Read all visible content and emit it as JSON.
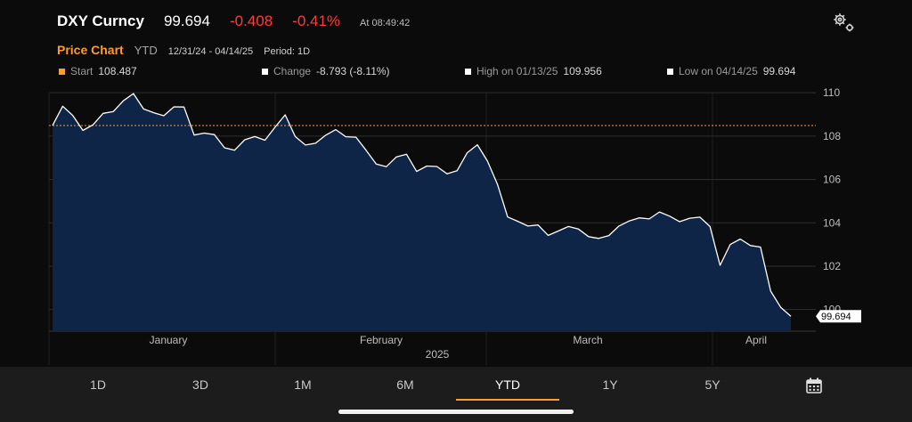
{
  "header": {
    "ticker": "DXY Curncy",
    "last_price": "99.694",
    "net_change": "-0.408",
    "pct_change": "-0.41%",
    "timestamp": "At 08:49:42",
    "settings_icon": "gear-icon"
  },
  "subheader": {
    "title": "Price Chart",
    "period": "YTD",
    "date_range": "12/31/24 - 04/14/25",
    "period_detail": "Period: 1D"
  },
  "stats": {
    "start_label": "Start",
    "start_value": "108.487",
    "change_label": "Change",
    "change_value": "-8.793 (-8.11%)",
    "high_label": "High on 01/13/25",
    "high_value": "109.956",
    "low_label": "Low on 04/14/25",
    "low_value": "99.694",
    "start_color": "#ff9b2f"
  },
  "chart_data": {
    "type": "area",
    "x_ticks": [
      "January",
      "February",
      "March",
      "April"
    ],
    "year_label": "2025",
    "y_ticks": [
      "110",
      "108",
      "106",
      "104",
      "102",
      "100"
    ],
    "ylim": [
      99.0,
      110.5
    ],
    "reference_line": 108.487,
    "last_label": "99.694",
    "line_color": "#ffffff",
    "fill_color": "#0f2547",
    "reference_color": "#ff9b2f",
    "grid": true,
    "values": [
      108.49,
      109.38,
      108.95,
      108.26,
      108.52,
      109.05,
      109.13,
      109.63,
      109.96,
      109.25,
      109.08,
      108.94,
      109.35,
      109.34,
      108.05,
      108.14,
      108.07,
      107.46,
      107.35,
      107.83,
      107.98,
      107.81,
      108.41,
      108.98,
      107.98,
      107.59,
      107.67,
      108.04,
      108.3,
      107.97,
      107.95,
      107.35,
      106.71,
      106.59,
      107.04,
      107.16,
      106.37,
      106.62,
      106.6,
      106.26,
      106.4,
      107.23,
      107.6,
      106.85,
      105.76,
      104.27,
      104.07,
      103.85,
      103.9,
      103.42,
      103.62,
      103.83,
      103.71,
      103.36,
      103.28,
      103.41,
      103.85,
      104.08,
      104.23,
      104.18,
      104.5,
      104.31,
      104.05,
      104.21,
      104.26,
      103.83,
      102.04,
      103.0,
      103.25,
      102.95,
      102.88,
      100.85,
      100.1,
      99.69
    ]
  },
  "tabs": [
    "1D",
    "3D",
    "1M",
    "6M",
    "YTD",
    "1Y",
    "5Y"
  ],
  "active_tab": "YTD",
  "calendar_icon": "calendar-icon"
}
